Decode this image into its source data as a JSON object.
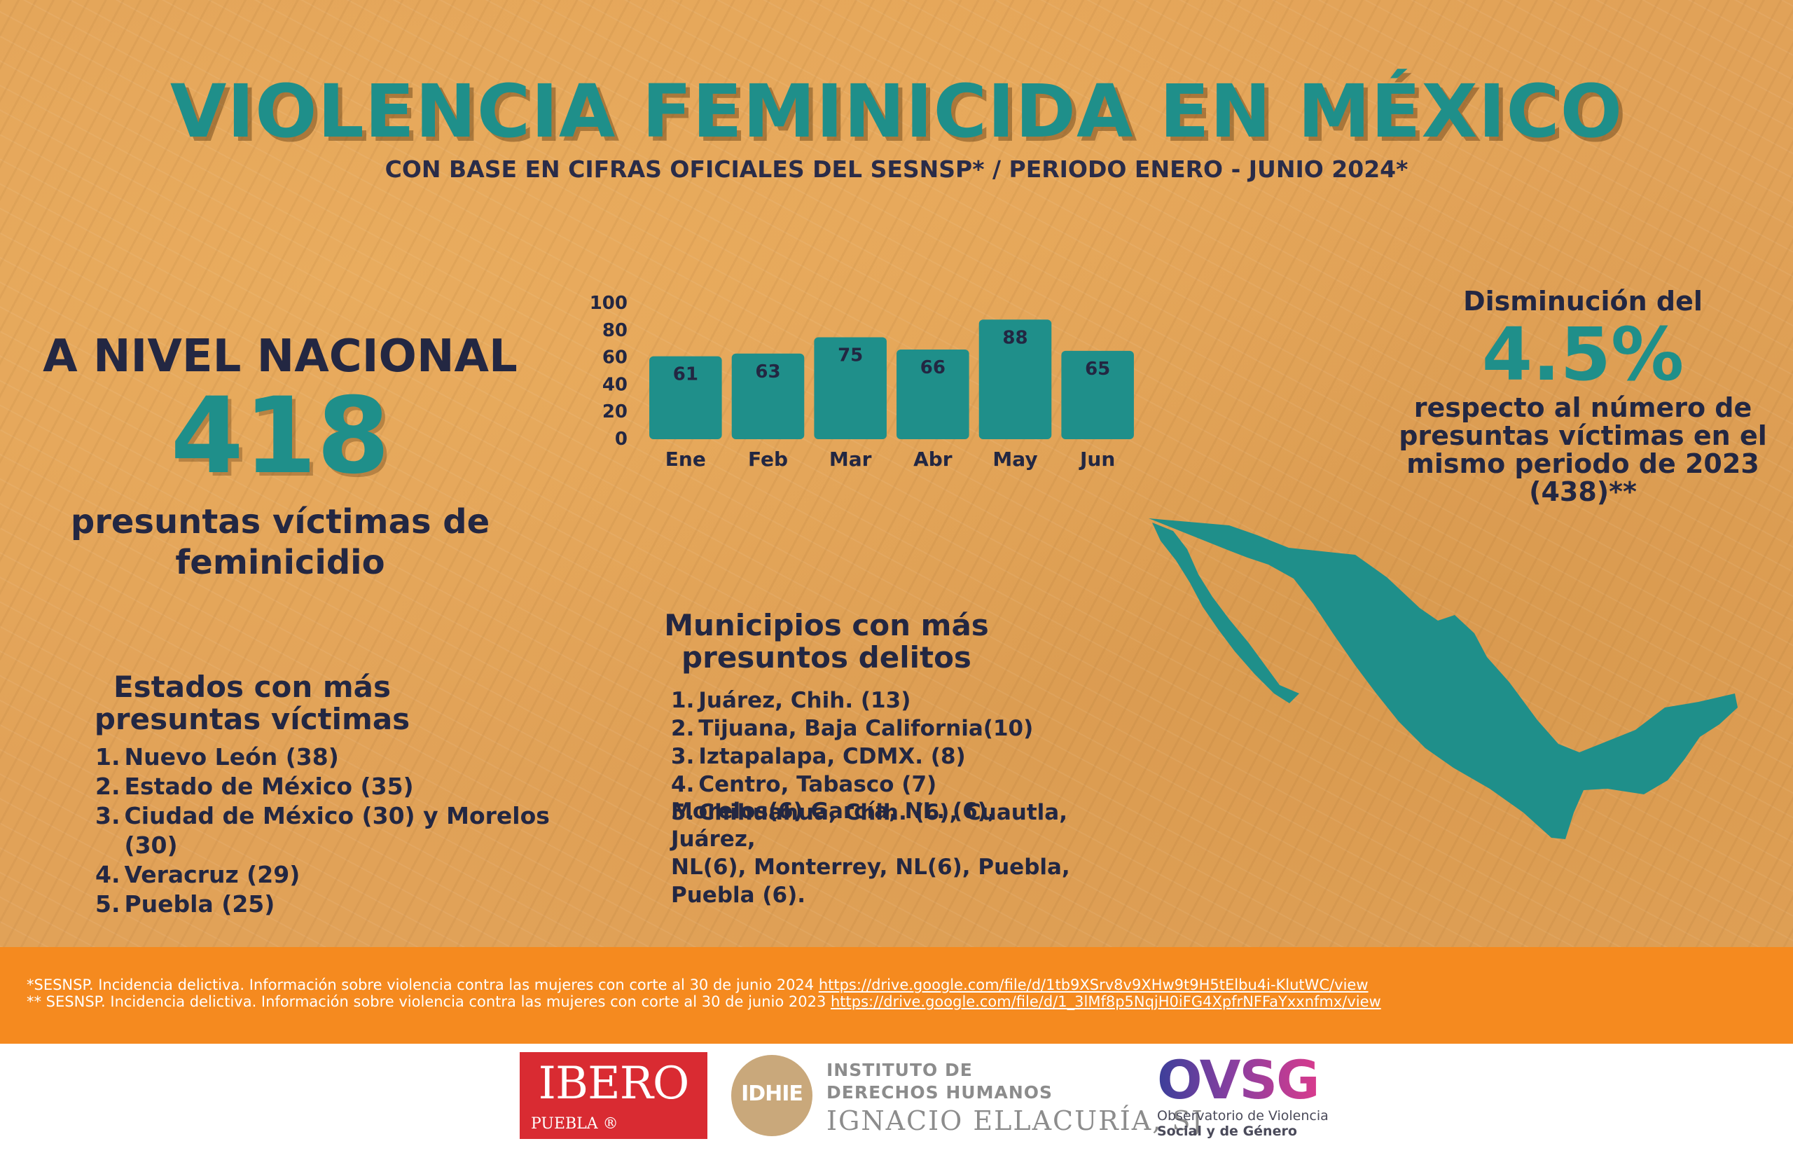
{
  "header": {
    "title": "VIOLENCIA FEMINICIDA EN MÉXICO",
    "subtitle": "CON BASE EN CIFRAS OFICIALES DEL SESNSP* / PERIODO ENERO - JUNIO 2024*"
  },
  "nacional": {
    "label": "A NIVEL NACIONAL",
    "value": "418",
    "desc_line1": "presuntas víctimas de",
    "desc_line2": "feminicidio"
  },
  "reduction": {
    "label": "Disminución  del",
    "value": "4.5%",
    "desc_line1": "respecto al número de",
    "desc_line2": "presuntas víctimas en el",
    "desc_line3": "mismo periodo de 2023",
    "desc_line4": "(438)**"
  },
  "chart_data": {
    "type": "bar",
    "categories": [
      "Ene",
      "Feb",
      "Mar",
      "Abr",
      "May",
      "Jun"
    ],
    "values": [
      61,
      63,
      75,
      66,
      88,
      65
    ],
    "ylim": [
      0,
      100
    ],
    "yticks": [
      0,
      20,
      40,
      60,
      80,
      100
    ],
    "data_labels": true,
    "grid": false,
    "bar_color": "#1f8f8a",
    "label_color": "#232742"
  },
  "estados": {
    "title_line1": "Estados con más",
    "title_line2": "presuntas víctimas",
    "items": [
      {
        "num": "1.",
        "text": "Nuevo León (38)"
      },
      {
        "num": "2.",
        "text": "Estado de México (35)"
      },
      {
        "num": "3.",
        "text": "Ciudad de México (30) y Morelos (30)"
      },
      {
        "num": "4.",
        "text": "Veracruz (29)"
      },
      {
        "num": "5.",
        "text": "Puebla (25)"
      }
    ]
  },
  "municipios": {
    "title_line1": "Municipios con más",
    "title_line2": "presuntos delitos",
    "items": [
      {
        "num": "1.",
        "text": "Juárez, Chih. (13)"
      },
      {
        "num": "2.",
        "text": "Tijuana, Baja California(10)"
      },
      {
        "num": "3.",
        "text": "Iztapalapa, CDMX. (8)"
      },
      {
        "num": "4.",
        "text": "Centro, Tabasco (7)"
      },
      {
        "num": "5.",
        "text": "Chihuahua, Chih. (6), Cuautla,"
      }
    ],
    "extra_line1": "Morelos(6) García, NL. (6), Juárez,",
    "extra_line2": "NL(6), Monterrey, NL(6), Puebla,",
    "extra_line3": "Puebla (6)."
  },
  "footnotes": {
    "fn1_text": "*SESNSP. Incidencia delictiva. Información sobre violencia contra las mujeres con corte al 30 de junio 2024 ",
    "fn1_link": "https://drive.google.com/file/d/1tb9XSrv8v9XHw9t9H5tElbu4i-KlutWC/view",
    "fn2_text": "** SESNSP. Incidencia delictiva. Información sobre violencia contra las mujeres con corte al 30 de junio 2023 ",
    "fn2_link": "https://drive.google.com/file/d/1_3lMf8p5NqjH0iFG4XpfrNFFaYxxnfmx/view"
  },
  "logos": {
    "ibero_name": "IBERO",
    "ibero_sub": "PUEBLA ®",
    "idhie_mark": "IDHIE",
    "idhie_line1": "INSTITUTO DE",
    "idhie_line2": "DERECHOS HUMANOS",
    "idhie_line3": "IGNACIO ELLACURÍA, SJ",
    "ovsg_name": "OVSG",
    "ovsg_line1": "Observatorio de Violencia",
    "ovsg_line2": "Social y de Género"
  },
  "colors": {
    "background": "#e1a258",
    "teal": "#1f8f8a",
    "navy": "#232742",
    "footer_orange": "#f58a1f"
  }
}
